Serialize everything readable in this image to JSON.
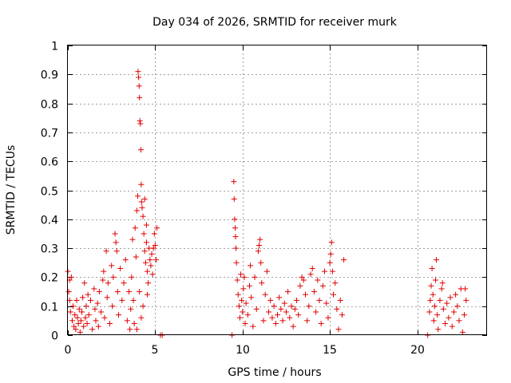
{
  "chart_data": {
    "type": "scatter",
    "title": "Day 034 of 2026, SRMTID for receiver murk",
    "xlabel": "GPS time / hours",
    "ylabel": "SRMTID / TECUs",
    "xlim": [
      0,
      24
    ],
    "ylim": [
      0,
      1
    ],
    "xticks": [
      0,
      5,
      10,
      15,
      20
    ],
    "xtick_labels": [
      "0",
      "5",
      "10",
      "15",
      "20"
    ],
    "yticks": [
      0,
      0.1,
      0.2,
      0.3,
      0.4,
      0.5,
      0.6,
      0.7,
      0.8,
      0.9,
      1
    ],
    "ytick_labels": [
      "0",
      "0.1",
      "0.2",
      "0.3",
      "0.4",
      "0.5",
      "0.6",
      "0.7",
      "0.8",
      "0.9",
      "1"
    ],
    "grid": true,
    "marker": "+",
    "color": "#e00000",
    "series": [
      {
        "name": "SRMTID",
        "points": [
          [
            0.0,
            0.22
          ],
          [
            0.05,
            0.15
          ],
          [
            0.1,
            0.19
          ],
          [
            0.1,
            0.12
          ],
          [
            0.2,
            0.2
          ],
          [
            0.15,
            0.08
          ],
          [
            0.25,
            0.05
          ],
          [
            0.3,
            0.1
          ],
          [
            0.35,
            0.03
          ],
          [
            0.4,
            0.07
          ],
          [
            0.45,
            0.02
          ],
          [
            0.5,
            0.12
          ],
          [
            0.55,
            0.06
          ],
          [
            0.6,
            0.04
          ],
          [
            0.65,
            0.09
          ],
          [
            0.7,
            0.01
          ],
          [
            0.75,
            0.05
          ],
          [
            0.8,
            0.08
          ],
          [
            0.85,
            0.13
          ],
          [
            0.9,
            0.03
          ],
          [
            0.95,
            0.18
          ],
          [
            1.0,
            0.06
          ],
          [
            1.05,
            0.1
          ],
          [
            1.1,
            0.04
          ],
          [
            1.15,
            0.14
          ],
          [
            1.2,
            0.07
          ],
          [
            1.3,
            0.12
          ],
          [
            1.4,
            0.02
          ],
          [
            1.5,
            0.16
          ],
          [
            1.55,
            0.09
          ],
          [
            1.6,
            0.05
          ],
          [
            1.7,
            0.11
          ],
          [
            1.75,
            0.03
          ],
          [
            1.8,
            0.15
          ],
          [
            1.9,
            0.08
          ],
          [
            2.0,
            0.19
          ],
          [
            2.05,
            0.22
          ],
          [
            2.1,
            0.06
          ],
          [
            2.2,
            0.29
          ],
          [
            2.25,
            0.13
          ],
          [
            2.3,
            0.18
          ],
          [
            2.4,
            0.04
          ],
          [
            2.5,
            0.24
          ],
          [
            2.55,
            0.1
          ],
          [
            2.6,
            0.2
          ],
          [
            2.7,
            0.35
          ],
          [
            2.75,
            0.32
          ],
          [
            2.8,
            0.29
          ],
          [
            2.85,
            0.15
          ],
          [
            2.9,
            0.07
          ],
          [
            3.0,
            0.23
          ],
          [
            3.1,
            0.12
          ],
          [
            3.2,
            0.18
          ],
          [
            3.3,
            0.26
          ],
          [
            3.4,
            0.05
          ],
          [
            3.5,
            0.15
          ],
          [
            3.55,
            0.02
          ],
          [
            3.6,
            0.09
          ],
          [
            3.65,
            0.2
          ],
          [
            3.7,
            0.33
          ],
          [
            3.75,
            0.12
          ],
          [
            3.8,
            0.04
          ],
          [
            3.85,
            0.37
          ],
          [
            3.9,
            0.27
          ],
          [
            3.95,
            0.43
          ],
          [
            4.0,
            0.48
          ],
          [
            4.02,
            0.91
          ],
          [
            4.05,
            0.89
          ],
          [
            4.08,
            0.86
          ],
          [
            4.1,
            0.82
          ],
          [
            4.12,
            0.74
          ],
          [
            4.15,
            0.73
          ],
          [
            4.18,
            0.64
          ],
          [
            4.2,
            0.52
          ],
          [
            4.22,
            0.46
          ],
          [
            4.25,
            0.44
          ],
          [
            4.3,
            0.41
          ],
          [
            4.35,
            0.35
          ],
          [
            4.4,
            0.29
          ],
          [
            4.45,
            0.25
          ],
          [
            4.5,
            0.32
          ],
          [
            4.55,
            0.22
          ],
          [
            4.6,
            0.18
          ],
          [
            4.65,
            0.3
          ],
          [
            4.7,
            0.26
          ],
          [
            4.75,
            0.24
          ],
          [
            4.8,
            0.28
          ],
          [
            4.85,
            0.21
          ],
          [
            4.9,
            0.3
          ],
          [
            4.95,
            0.35
          ],
          [
            5.0,
            0.31
          ],
          [
            5.05,
            0.26
          ],
          [
            5.1,
            0.37
          ],
          [
            4.5,
            0.38
          ],
          [
            4.4,
            0.47
          ],
          [
            4.55,
            0.14
          ],
          [
            4.3,
            0.1
          ],
          [
            4.2,
            0.06
          ],
          [
            4.1,
            0.15
          ],
          [
            3.95,
            0.02
          ],
          [
            5.3,
            0.0
          ],
          [
            5.4,
            0.0
          ],
          [
            9.4,
            0.0
          ],
          [
            9.5,
            0.53
          ],
          [
            9.52,
            0.47
          ],
          [
            9.55,
            0.4
          ],
          [
            9.58,
            0.37
          ],
          [
            9.6,
            0.34
          ],
          [
            9.62,
            0.3
          ],
          [
            9.65,
            0.25
          ],
          [
            9.7,
            0.19
          ],
          [
            9.75,
            0.14
          ],
          [
            9.8,
            0.1
          ],
          [
            9.85,
            0.06
          ],
          [
            9.9,
            0.21
          ],
          [
            9.95,
            0.12
          ],
          [
            10.0,
            0.08
          ],
          [
            10.05,
            0.16
          ],
          [
            10.1,
            0.2
          ],
          [
            10.15,
            0.04
          ],
          [
            10.2,
            0.11
          ],
          [
            10.3,
            0.07
          ],
          [
            10.4,
            0.17
          ],
          [
            10.45,
            0.24
          ],
          [
            10.5,
            0.13
          ],
          [
            10.6,
            0.03
          ],
          [
            10.7,
            0.2
          ],
          [
            10.8,
            0.09
          ],
          [
            10.9,
            0.29
          ],
          [
            10.95,
            0.31
          ],
          [
            11.0,
            0.33
          ],
          [
            11.05,
            0.25
          ],
          [
            11.1,
            0.18
          ],
          [
            11.2,
            0.05
          ],
          [
            11.3,
            0.14
          ],
          [
            11.4,
            0.22
          ],
          [
            11.5,
            0.08
          ],
          [
            11.6,
            0.12
          ],
          [
            11.7,
            0.06
          ],
          [
            11.8,
            0.1
          ],
          [
            11.9,
            0.04
          ],
          [
            12.0,
            0.07
          ],
          [
            12.1,
            0.13
          ],
          [
            12.2,
            0.09
          ],
          [
            12.3,
            0.05
          ],
          [
            12.4,
            0.11
          ],
          [
            12.5,
            0.08
          ],
          [
            12.6,
            0.15
          ],
          [
            12.7,
            0.06
          ],
          [
            12.8,
            0.1
          ],
          [
            12.9,
            0.03
          ],
          [
            13.0,
            0.09
          ],
          [
            13.1,
            0.12
          ],
          [
            13.2,
            0.07
          ],
          [
            13.3,
            0.17
          ],
          [
            13.4,
            0.2
          ],
          [
            13.5,
            0.19
          ],
          [
            13.6,
            0.14
          ],
          [
            13.7,
            0.05
          ],
          [
            13.8,
            0.1
          ],
          [
            13.9,
            0.21
          ],
          [
            14.0,
            0.23
          ],
          [
            14.1,
            0.15
          ],
          [
            14.2,
            0.08
          ],
          [
            14.3,
            0.19
          ],
          [
            14.4,
            0.12
          ],
          [
            14.5,
            0.04
          ],
          [
            14.6,
            0.17
          ],
          [
            14.7,
            0.22
          ],
          [
            14.8,
            0.11
          ],
          [
            14.9,
            0.06
          ],
          [
            15.0,
            0.25
          ],
          [
            15.05,
            0.28
          ],
          [
            15.1,
            0.32
          ],
          [
            15.15,
            0.22
          ],
          [
            15.2,
            0.14
          ],
          [
            15.3,
            0.18
          ],
          [
            15.4,
            0.09
          ],
          [
            15.5,
            0.02
          ],
          [
            15.6,
            0.12
          ],
          [
            15.7,
            0.07
          ],
          [
            15.8,
            0.26
          ],
          [
            20.6,
            0.0
          ],
          [
            20.7,
            0.08
          ],
          [
            20.75,
            0.12
          ],
          [
            20.8,
            0.17
          ],
          [
            20.85,
            0.23
          ],
          [
            20.9,
            0.14
          ],
          [
            20.95,
            0.05
          ],
          [
            21.0,
            0.1
          ],
          [
            21.05,
            0.19
          ],
          [
            21.1,
            0.26
          ],
          [
            21.15,
            0.07
          ],
          [
            21.2,
            0.02
          ],
          [
            21.3,
            0.12
          ],
          [
            21.4,
            0.16
          ],
          [
            21.45,
            0.18
          ],
          [
            21.5,
            0.09
          ],
          [
            21.6,
            0.04
          ],
          [
            21.7,
            0.11
          ],
          [
            21.8,
            0.06
          ],
          [
            21.9,
            0.13
          ],
          [
            22.0,
            0.03
          ],
          [
            22.1,
            0.08
          ],
          [
            22.2,
            0.14
          ],
          [
            22.3,
            0.1
          ],
          [
            22.4,
            0.05
          ],
          [
            22.5,
            0.16
          ],
          [
            22.6,
            0.01
          ],
          [
            22.7,
            0.07
          ],
          [
            22.75,
            0.16
          ],
          [
            22.8,
            0.12
          ]
        ]
      }
    ]
  }
}
